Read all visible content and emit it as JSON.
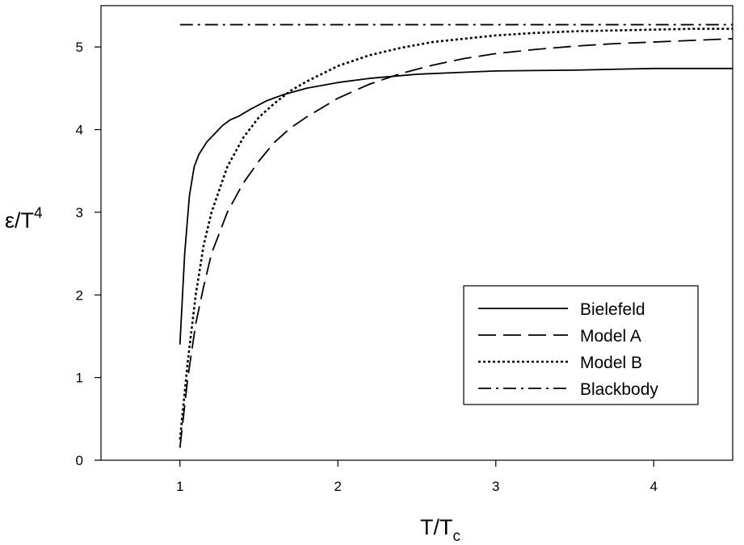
{
  "chart_data": {
    "type": "line",
    "xlabel": {
      "main": "T/T",
      "sub": "c"
    },
    "ylabel": {
      "main": "ε/T",
      "sup": "4"
    },
    "xlim": [
      0.5,
      4.5
    ],
    "ylim": [
      0,
      5.5
    ],
    "xticks": [
      1,
      2,
      3,
      4
    ],
    "yticks": [
      0,
      1,
      2,
      3,
      4,
      5
    ],
    "grid": false,
    "legend_position": "lower-right",
    "series": [
      {
        "name": "Bielefeld",
        "style": "solid",
        "x": [
          1.0,
          1.03,
          1.06,
          1.09,
          1.12,
          1.17,
          1.22,
          1.27,
          1.32,
          1.37,
          1.45,
          1.55,
          1.65,
          1.8,
          2.0,
          2.2,
          2.5,
          2.75,
          3.0,
          3.5,
          4.0,
          4.5
        ],
        "y": [
          1.4,
          2.5,
          3.2,
          3.55,
          3.7,
          3.85,
          3.95,
          4.05,
          4.12,
          4.16,
          4.25,
          4.35,
          4.42,
          4.5,
          4.57,
          4.62,
          4.67,
          4.69,
          4.71,
          4.72,
          4.74,
          4.74
        ]
      },
      {
        "name": "Model A",
        "style": "dashed",
        "x": [
          1.0,
          1.05,
          1.1,
          1.15,
          1.2,
          1.3,
          1.4,
          1.5,
          1.6,
          1.7,
          1.8,
          2.0,
          2.2,
          2.4,
          2.6,
          2.8,
          3.0,
          3.25,
          3.5,
          3.75,
          4.0,
          4.25,
          4.5
        ],
        "y": [
          0.15,
          1.0,
          1.65,
          2.1,
          2.5,
          3.0,
          3.35,
          3.62,
          3.85,
          4.02,
          4.15,
          4.38,
          4.55,
          4.68,
          4.78,
          4.86,
          4.92,
          4.97,
          5.01,
          5.04,
          5.06,
          5.08,
          5.1
        ]
      },
      {
        "name": "Model B",
        "style": "dotted",
        "x": [
          1.0,
          1.05,
          1.1,
          1.15,
          1.2,
          1.3,
          1.4,
          1.5,
          1.6,
          1.7,
          1.8,
          2.0,
          2.2,
          2.4,
          2.6,
          2.8,
          3.0,
          3.25,
          3.5,
          3.75,
          4.0,
          4.25,
          4.5
        ],
        "y": [
          0.25,
          1.2,
          2.0,
          2.6,
          3.0,
          3.55,
          3.9,
          4.15,
          4.32,
          4.47,
          4.58,
          4.77,
          4.9,
          4.99,
          5.06,
          5.1,
          5.14,
          5.17,
          5.19,
          5.2,
          5.21,
          5.22,
          5.22
        ]
      },
      {
        "name": "Blackbody",
        "style": "dashdot",
        "x": [
          1.0,
          4.5
        ],
        "y": [
          5.27,
          5.27
        ]
      }
    ]
  }
}
